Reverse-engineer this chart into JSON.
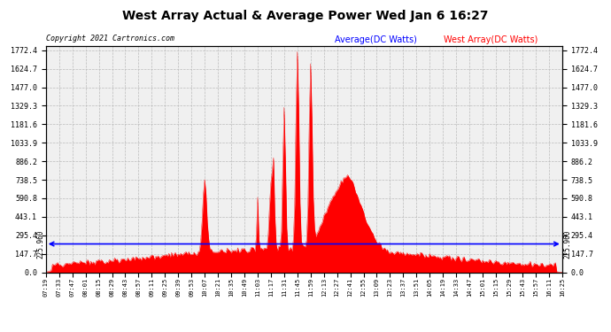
{
  "title": "West Array Actual & Average Power Wed Jan 6 16:27",
  "copyright": "Copyright 2021 Cartronics.com",
  "legend_avg": "Average(DC Watts)",
  "legend_west": "West Array(DC Watts)",
  "y_ticks": [
    0.0,
    147.7,
    295.4,
    443.1,
    590.8,
    738.5,
    886.2,
    1033.9,
    1181.6,
    1329.3,
    1477.0,
    1624.7,
    1772.4
  ],
  "ymin": 0.0,
  "ymax": 1772.4,
  "avg_line_y": 225.96,
  "avg_label": "225.960",
  "bg_color": "#ffffff",
  "plot_bg_color": "#f0f0f0",
  "grid_color": "#bbbbbb",
  "fill_color": "#ff0000",
  "avg_color": "#0000ff",
  "title_color": "#000000",
  "copyright_color": "#000000",
  "legend_avg_color": "#0000ff",
  "legend_west_color": "#ff0000",
  "x_labels": [
    "07:19",
    "07:33",
    "07:47",
    "08:01",
    "08:15",
    "08:29",
    "08:43",
    "08:57",
    "09:11",
    "09:25",
    "09:39",
    "09:53",
    "10:07",
    "10:21",
    "10:35",
    "10:49",
    "11:03",
    "11:17",
    "11:31",
    "11:45",
    "11:59",
    "12:13",
    "12:27",
    "12:41",
    "12:55",
    "13:09",
    "13:23",
    "13:37",
    "13:51",
    "14:05",
    "14:19",
    "14:33",
    "14:47",
    "15:01",
    "15:15",
    "15:29",
    "15:43",
    "15:57",
    "16:11",
    "16:25"
  ]
}
